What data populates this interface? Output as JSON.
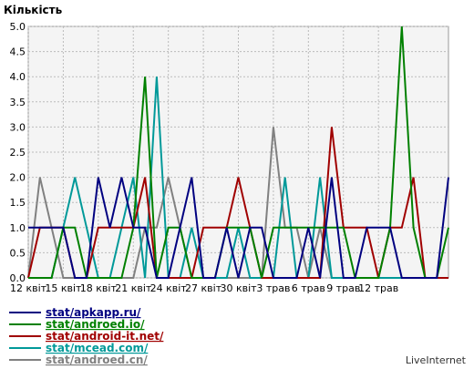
{
  "chart_data": {
    "type": "line",
    "ylabel": "Кількість",
    "ylim": [
      0,
      5
    ],
    "y_ticks": [
      "0.0",
      "0.5",
      "1.0",
      "1.5",
      "2.0",
      "2.5",
      "3.0",
      "3.5",
      "4.0",
      "4.5",
      "5.0"
    ],
    "x_tick_labels": [
      "12 квіт",
      "15 квіт",
      "18 квіт",
      "21 квіт",
      "24 квіт",
      "27 квіт",
      "30 квіт",
      "3 трав",
      "6 трав",
      "9 трав",
      "12 трав"
    ],
    "grid": true,
    "legend_position": "bottom-left",
    "series": [
      {
        "name": "stat/apkapp.ru/",
        "color": "#000080",
        "values": [
          1,
          1,
          1,
          1,
          0,
          0,
          2,
          1,
          2,
          1,
          1,
          0,
          0,
          1,
          2,
          0,
          0,
          1,
          0,
          1,
          1,
          0,
          0,
          0,
          1,
          0,
          2,
          0,
          0,
          1,
          1,
          1,
          0,
          0,
          0,
          0,
          2
        ]
      },
      {
        "name": "stat/androed.io/",
        "color": "#008000",
        "values": [
          0,
          0,
          0,
          1,
          1,
          0,
          0,
          0,
          0,
          1,
          4,
          0,
          1,
          1,
          0,
          0,
          0,
          1,
          1,
          1,
          0,
          1,
          1,
          1,
          1,
          1,
          1,
          1,
          0,
          0,
          0,
          1,
          5,
          1,
          0,
          0,
          1
        ]
      },
      {
        "name": "stat/android-it.net/",
        "color": "#a00000",
        "values": [
          0,
          1,
          1,
          1,
          0,
          0,
          1,
          1,
          1,
          1,
          2,
          0,
          0,
          0,
          0,
          1,
          1,
          1,
          2,
          1,
          0,
          0,
          0,
          0,
          0,
          0,
          3,
          1,
          1,
          1,
          0,
          1,
          1,
          2,
          0,
          0,
          0
        ]
      },
      {
        "name": "stat/mcead.com/",
        "color": "#009999",
        "values": [
          0,
          0,
          0,
          1,
          2,
          1,
          0,
          0,
          1,
          2,
          0,
          4,
          0,
          0,
          1,
          0,
          0,
          0,
          1,
          0,
          0,
          0,
          2,
          0,
          0,
          2,
          0,
          0,
          0,
          0,
          0,
          0,
          0,
          0,
          0,
          0,
          0
        ]
      },
      {
        "name": "stat/androed.cn/",
        "color": "#808080",
        "values": [
          0,
          2,
          1,
          0,
          0,
          0,
          0,
          0,
          0,
          0,
          1,
          1,
          2,
          1,
          0,
          0,
          0,
          0,
          0,
          0,
          0,
          3,
          1,
          1,
          0,
          1,
          0,
          0,
          0,
          0,
          0,
          0,
          0,
          0,
          0,
          0,
          0
        ]
      }
    ]
  },
  "footer": {
    "brand": "LiveInternet"
  }
}
